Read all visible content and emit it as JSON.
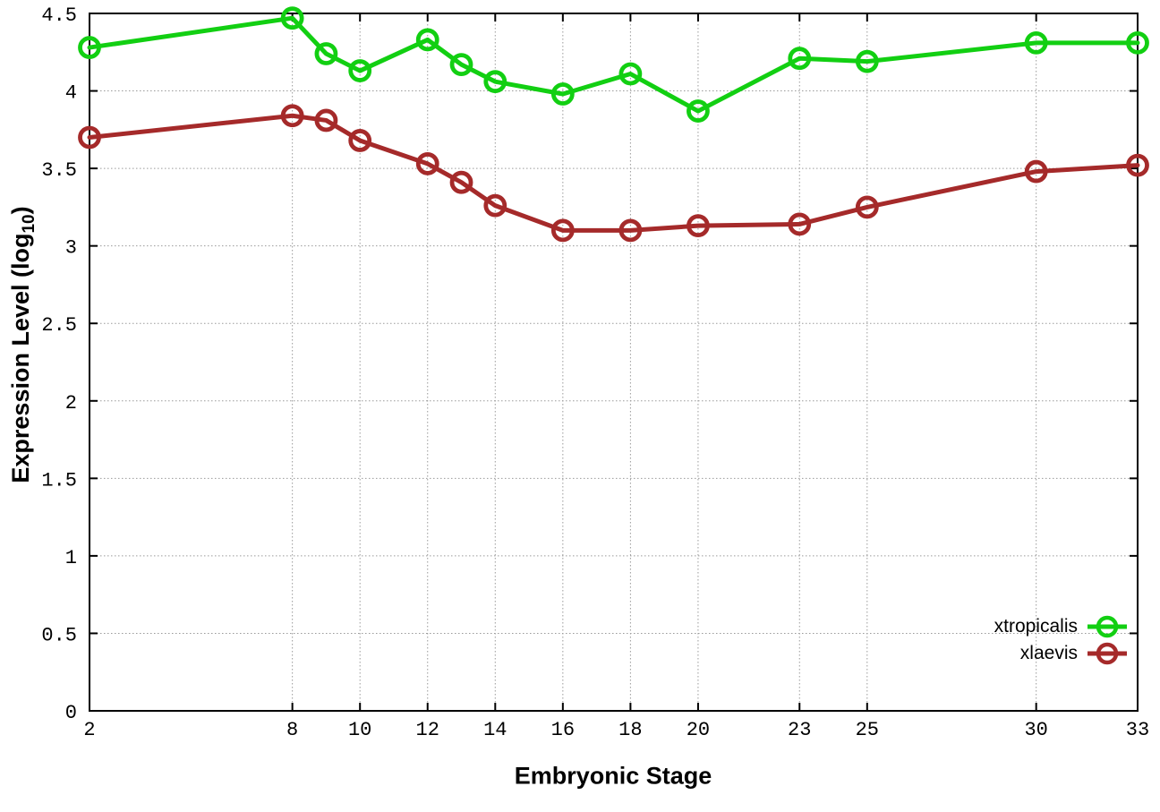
{
  "chart_data": {
    "type": "line",
    "title": "",
    "xlabel": "Embryonic Stage",
    "ylabel": "Expression Level (log10)",
    "ylabel_parts": {
      "main": "Expression Level (log",
      "sub": "10",
      "close": ")"
    },
    "xlim": [
      2,
      33
    ],
    "ylim": [
      0,
      4.5
    ],
    "x_ticks": [
      2,
      8,
      10,
      12,
      14,
      16,
      18,
      20,
      23,
      25,
      30,
      33
    ],
    "y_tick_labels": [
      "0",
      "0.5",
      "1",
      "1.5",
      "2",
      "2.5",
      "3",
      "3.5",
      "4",
      "4.5"
    ],
    "grid": true,
    "legend_position": "inside bottom right",
    "x": [
      2,
      8,
      9,
      10,
      12,
      13,
      14,
      16,
      18,
      20,
      23,
      25,
      30,
      33
    ],
    "series": [
      {
        "name": "xtropicalis",
        "color": "#12cf12",
        "values": [
          4.28,
          4.47,
          4.24,
          4.13,
          4.33,
          4.17,
          4.06,
          3.98,
          4.11,
          3.87,
          4.21,
          4.19,
          4.31,
          4.31
        ]
      },
      {
        "name": "xlaevis",
        "color": "#a52a2a",
        "values": [
          3.7,
          3.84,
          3.81,
          3.68,
          3.53,
          3.41,
          3.26,
          3.1,
          3.1,
          3.13,
          3.14,
          3.25,
          3.48,
          3.52
        ]
      }
    ]
  },
  "style": {
    "axis_color": "#000000",
    "grid_color": "#9a9a9a",
    "background": "#ffffff",
    "tick_font_px": 22,
    "marker_radius": 10.5,
    "line_width": 5
  }
}
